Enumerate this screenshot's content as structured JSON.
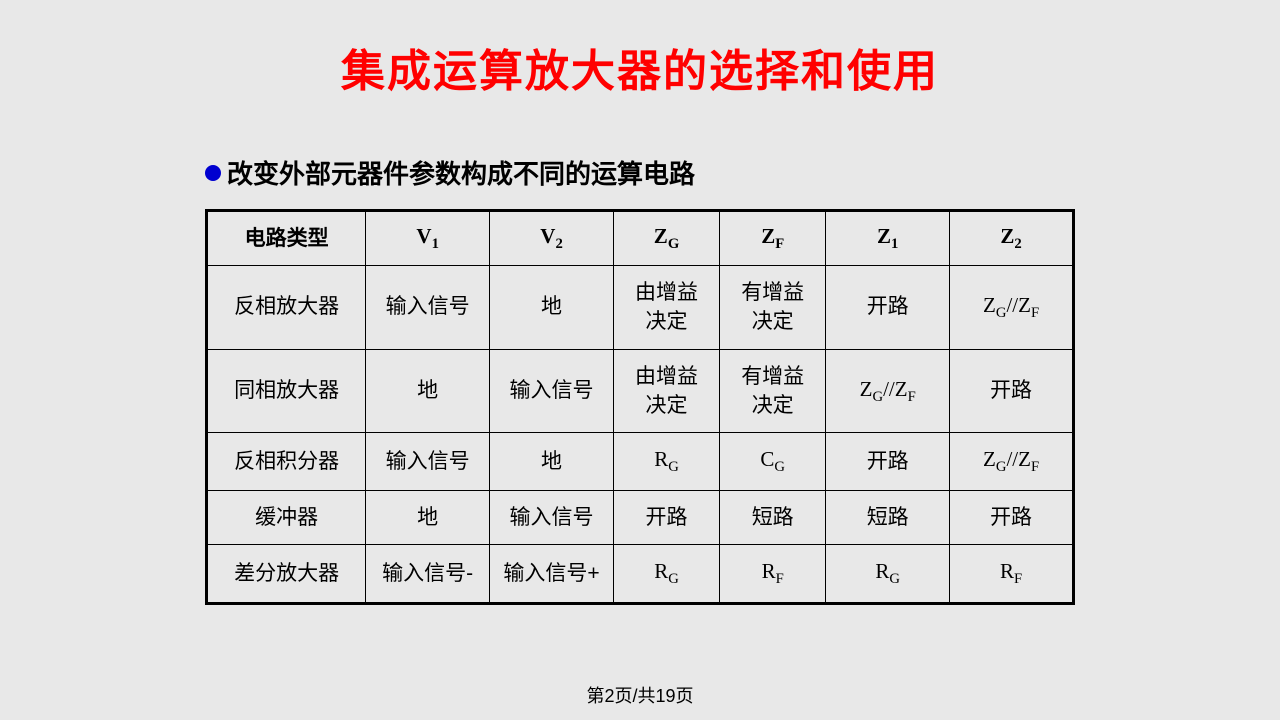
{
  "title": {
    "text": "集成运算放大器的选择和使用",
    "color": "#ff0000"
  },
  "bullet": {
    "text": "改变外部元器件参数构成不同的运算电路",
    "dot_color": "#0000d0",
    "text_color": "#000000"
  },
  "table": {
    "background_color": "#e8e8e8",
    "border_color": "#000000",
    "header_fontsize": 21,
    "cell_fontsize": 21,
    "columns": [
      {
        "label": "电路类型",
        "sub": ""
      },
      {
        "label": "V",
        "sub": "1"
      },
      {
        "label": "V",
        "sub": "2"
      },
      {
        "label": "Z",
        "sub": "G"
      },
      {
        "label": "Z",
        "sub": "F"
      },
      {
        "label": "Z",
        "sub": "1"
      },
      {
        "label": "Z",
        "sub": "2"
      }
    ],
    "rows": [
      [
        {
          "text": "反相放大器"
        },
        {
          "text": "输入信号"
        },
        {
          "text": "地"
        },
        {
          "text": "由增益\n决定"
        },
        {
          "text": "有增益\n决定"
        },
        {
          "text": "开路"
        },
        {
          "html": "Z<sub>G</sub>//Z<sub>F</sub>"
        }
      ],
      [
        {
          "text": "同相放大器"
        },
        {
          "text": "地"
        },
        {
          "text": "输入信号"
        },
        {
          "text": "由增益\n决定"
        },
        {
          "text": "有增益\n决定"
        },
        {
          "html": "Z<sub>G</sub>//Z<sub>F</sub>"
        },
        {
          "text": "开路"
        }
      ],
      [
        {
          "text": "反相积分器"
        },
        {
          "text": "输入信号"
        },
        {
          "text": "地"
        },
        {
          "html": "R<sub>G</sub>"
        },
        {
          "html": "C<sub>G</sub>"
        },
        {
          "text": "开路"
        },
        {
          "html": "Z<sub>G</sub>//Z<sub>F</sub>"
        }
      ],
      [
        {
          "text": "缓冲器"
        },
        {
          "text": "地"
        },
        {
          "text": "输入信号"
        },
        {
          "text": "开路"
        },
        {
          "text": "短路"
        },
        {
          "text": "短路"
        },
        {
          "text": "开路"
        }
      ],
      [
        {
          "text": "差分放大器"
        },
        {
          "text": "输入信号-"
        },
        {
          "text": "输入信号+"
        },
        {
          "html": "R<sub>G</sub>"
        },
        {
          "html": "R<sub>F</sub>"
        },
        {
          "html": "R<sub>G</sub>"
        },
        {
          "html": "R<sub>F</sub>"
        }
      ]
    ]
  },
  "footer": {
    "text": "第2页/共19页"
  }
}
